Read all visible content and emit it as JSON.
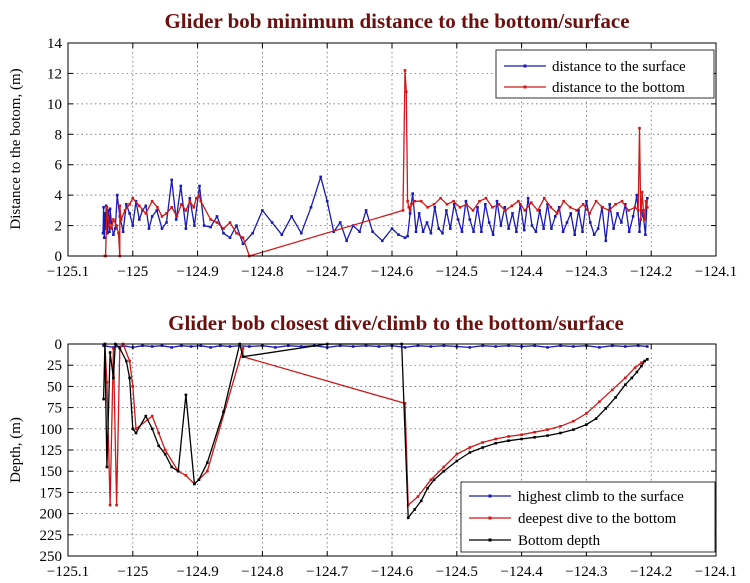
{
  "chart_data": [
    {
      "type": "line",
      "title": "Glider bob minimum distance to the bottom/surface",
      "xlabel": "",
      "ylabel": "Distance to the botom, (m)",
      "xlim": [
        -125.1,
        -124.1
      ],
      "ylim": [
        0,
        14
      ],
      "xticks": [
        "−125.1",
        "−125",
        "−124.9",
        "−124.8",
        "−124.7",
        "−124.6",
        "−124.5",
        "−124.4",
        "−124.3",
        "−124.2",
        "−124.1"
      ],
      "yticks": [
        "0",
        "2",
        "4",
        "6",
        "8",
        "10",
        "12",
        "14"
      ],
      "grid": true,
      "legend": "top-right",
      "series": [
        {
          "name": "distance to the surface",
          "color": "#1a1ab4",
          "x": [
            -125.046,
            -125.045,
            -125.044,
            -125.043,
            -125.042,
            -125.041,
            -125.04,
            -125.039,
            -125.038,
            -125.037,
            -125.036,
            -125.035,
            -125.033,
            -125.03,
            -125.027,
            -125.024,
            -125.02,
            -125.015,
            -125.01,
            -125.005,
            -125.0,
            -124.995,
            -124.99,
            -124.985,
            -124.98,
            -124.975,
            -124.97,
            -124.963,
            -124.955,
            -124.948,
            -124.94,
            -124.933,
            -124.926,
            -124.918,
            -124.912,
            -124.905,
            -124.897,
            -124.89,
            -124.88,
            -124.87,
            -124.86,
            -124.85,
            -124.84,
            -124.83,
            -124.815,
            -124.8,
            -124.785,
            -124.77,
            -124.755,
            -124.74,
            -124.725,
            -124.71,
            -124.7,
            -124.69,
            -124.68,
            -124.67,
            -124.66,
            -124.65,
            -124.64,
            -124.63,
            -124.615,
            -124.6,
            -124.59,
            -124.58,
            -124.576,
            -124.572,
            -124.568,
            -124.563,
            -124.558,
            -124.552,
            -124.546,
            -124.54,
            -124.534,
            -124.528,
            -124.522,
            -124.516,
            -124.51,
            -124.504,
            -124.498,
            -124.492,
            -124.486,
            -124.48,
            -124.474,
            -124.468,
            -124.462,
            -124.456,
            -124.45,
            -124.444,
            -124.438,
            -124.432,
            -124.426,
            -124.42,
            -124.414,
            -124.408,
            -124.402,
            -124.396,
            -124.39,
            -124.384,
            -124.378,
            -124.372,
            -124.366,
            -124.36,
            -124.354,
            -124.348,
            -124.342,
            -124.336,
            -124.33,
            -124.324,
            -124.318,
            -124.312,
            -124.306,
            -124.3,
            -124.294,
            -124.288,
            -124.282,
            -124.276,
            -124.27,
            -124.264,
            -124.258,
            -124.252,
            -124.246,
            -124.24,
            -124.234,
            -124.228,
            -124.222,
            -124.218,
            -124.215,
            -124.212,
            -124.209,
            -124.206
          ],
          "y": [
            1.5,
            3.2,
            1.2,
            2.8,
            1.8,
            3.3,
            2.0,
            1.5,
            3.0,
            2.4,
            1.6,
            3.1,
            2.2,
            1.4,
            1.8,
            4.0,
            2.6,
            1.6,
            3.4,
            2.8,
            2.0,
            3.6,
            2.4,
            3.0,
            3.3,
            1.8,
            2.6,
            3.0,
            1.8,
            2.2,
            5.0,
            2.4,
            4.6,
            1.8,
            3.8,
            2.0,
            4.6,
            2.0,
            1.9,
            2.6,
            1.5,
            1.2,
            2.0,
            0.8,
            1.5,
            3.0,
            2.2,
            1.4,
            2.6,
            1.5,
            3.2,
            5.2,
            3.6,
            1.6,
            2.2,
            1.0,
            2.0,
            1.6,
            3.0,
            1.6,
            1.0,
            1.8,
            1.4,
            1.2,
            1.3,
            2.8,
            4.1,
            1.6,
            2.8,
            1.6,
            2.2,
            1.5,
            3.2,
            1.8,
            1.5,
            3.0,
            1.8,
            3.4,
            2.4,
            1.6,
            3.6,
            2.4,
            1.6,
            3.2,
            1.6,
            3.4,
            2.2,
            1.4,
            3.6,
            2.0,
            3.2,
            1.8,
            2.8,
            1.6,
            3.4,
            1.7,
            3.8,
            2.0,
            1.6,
            3.0,
            1.8,
            3.4,
            1.8,
            2.6,
            3.2,
            1.6,
            2.2,
            2.8,
            1.4,
            3.0,
            1.6,
            3.6,
            2.2,
            1.4,
            1.8,
            3.2,
            1.0,
            3.4,
            1.8,
            2.8,
            2.2,
            3.4,
            1.6,
            2.6,
            4.0,
            1.6,
            3.0,
            2.6,
            1.4,
            3.8
          ]
        },
        {
          "name": "distance to the bottom",
          "color": "#d01818",
          "x": [
            -125.043,
            -125.042,
            -125.04,
            -125.038,
            -125.036,
            -125.033,
            -125.03,
            -125.025,
            -125.022,
            -125.02,
            -125.02,
            -125.018,
            -125.012,
            -125.005,
            -125.0,
            -124.99,
            -124.98,
            -124.97,
            -124.962,
            -124.955,
            -124.948,
            -124.94,
            -124.932,
            -124.925,
            -124.918,
            -124.912,
            -124.906,
            -124.902,
            -124.898,
            -124.895,
            -124.88,
            -124.87,
            -124.86,
            -124.85,
            -124.84,
            -124.83,
            -124.82,
            -124.583,
            -124.58,
            -124.578,
            -124.576,
            -124.574,
            -124.572,
            -124.57,
            -124.565,
            -124.555,
            -124.545,
            -124.535,
            -124.525,
            -124.515,
            -124.505,
            -124.495,
            -124.485,
            -124.475,
            -124.465,
            -124.455,
            -124.445,
            -124.435,
            -124.425,
            -124.415,
            -124.405,
            -124.395,
            -124.385,
            -124.375,
            -124.365,
            -124.355,
            -124.345,
            -124.335,
            -124.325,
            -124.315,
            -124.305,
            -124.295,
            -124.285,
            -124.275,
            -124.265,
            -124.255,
            -124.245,
            -124.235,
            -124.225,
            -124.22,
            -124.218,
            -124.216,
            -124.214,
            -124.212,
            -124.21,
            -124.208,
            -124.206
          ],
          "y": [
            0,
            0,
            3.2,
            2.5,
            2.0,
            1.8,
            2.4,
            2.0,
            1.5,
            0,
            3.3,
            2.4,
            3.0,
            3.4,
            3.8,
            3.3,
            2.8,
            3.6,
            3.2,
            2.6,
            2.8,
            3.2,
            2.6,
            3.4,
            3.0,
            3.6,
            3.2,
            3.8,
            4.0,
            3.6,
            2.4,
            2.2,
            1.8,
            2.2,
            1.5,
            1.2,
            0,
            3.0,
            12.2,
            10.8,
            3.6,
            3.2,
            3.0,
            3.4,
            3.6,
            3.6,
            3.2,
            3.4,
            3.8,
            3.4,
            3.6,
            3.2,
            3.4,
            3.0,
            3.6,
            3.8,
            3.2,
            3.4,
            3.0,
            3.3,
            3.6,
            3.0,
            3.5,
            3.0,
            3.8,
            3.2,
            2.8,
            3.6,
            3.2,
            3.0,
            3.4,
            2.8,
            3.6,
            3.2,
            3.0,
            3.4,
            3.6,
            3.0,
            3.2,
            3.0,
            8.4,
            2.4,
            4.2,
            3.0,
            2.4,
            3.6,
            3.2
          ]
        }
      ]
    },
    {
      "type": "line",
      "title": "Glider bob closest dive/climb to the bottom/surface",
      "xlabel": "",
      "ylabel": "Depth, (m)",
      "xlim": [
        -125.1,
        -124.1
      ],
      "ylim": [
        250,
        0
      ],
      "xticks": [
        "−125.1",
        "−125",
        "−124.9",
        "−124.8",
        "−124.7",
        "−124.6",
        "−124.5",
        "−124.4",
        "−124.3",
        "−124.2",
        "−124.1"
      ],
      "yticks": [
        "0",
        "25",
        "50",
        "75",
        "100",
        "125",
        "150",
        "175",
        "200",
        "225",
        "250"
      ],
      "grid": true,
      "legend": "bottom-right",
      "series": [
        {
          "name": "highest climb to the surface",
          "color": "#1a1ab4",
          "x": [
            -125.045,
            -125.03,
            -125.015,
            -125.0,
            -124.985,
            -124.97,
            -124.955,
            -124.94,
            -124.925,
            -124.91,
            -124.895,
            -124.88,
            -124.865,
            -124.85,
            -124.835,
            -124.82,
            -124.8,
            -124.78,
            -124.76,
            -124.74,
            -124.72,
            -124.7,
            -124.68,
            -124.66,
            -124.64,
            -124.62,
            -124.6,
            -124.58,
            -124.56,
            -124.54,
            -124.52,
            -124.5,
            -124.48,
            -124.46,
            -124.44,
            -124.42,
            -124.4,
            -124.38,
            -124.36,
            -124.34,
            -124.32,
            -124.3,
            -124.28,
            -124.26,
            -124.24,
            -124.22,
            -124.206
          ],
          "y": [
            2,
            4,
            2,
            4,
            2,
            3,
            2,
            4,
            2,
            3,
            2,
            4,
            2,
            3,
            2,
            3,
            2,
            4,
            2,
            3,
            2,
            4,
            2,
            3,
            2,
            3,
            2,
            4,
            2,
            3,
            2,
            3,
            4,
            2,
            3,
            2,
            3,
            2,
            4,
            2,
            3,
            2,
            4,
            2,
            3,
            2,
            3
          ]
        },
        {
          "name": "deepest dive to the bottom",
          "color": "#d01818",
          "x": [
            -125.043,
            -125.04,
            -125.035,
            -125.03,
            -125.025,
            -125.02,
            -125.015,
            -125.005,
            -125.0,
            -124.995,
            -124.97,
            -124.96,
            -124.95,
            -124.93,
            -124.918,
            -124.905,
            -124.898,
            -124.885,
            -124.83,
            -124.83,
            -124.58,
            -124.575,
            -124.56,
            -124.54,
            -124.52,
            -124.5,
            -124.48,
            -124.46,
            -124.44,
            -124.42,
            -124.4,
            -124.38,
            -124.36,
            -124.34,
            -124.32,
            -124.3,
            -124.28,
            -124.26,
            -124.24,
            -124.225,
            -124.215,
            -124.206
          ],
          "y": [
            0,
            45,
            190,
            5,
            190,
            5,
            0,
            20,
            50,
            100,
            85,
            105,
            125,
            150,
            155,
            165,
            160,
            150,
            5,
            15,
            70,
            190,
            180,
            160,
            145,
            130,
            122,
            116,
            112,
            109,
            107,
            104,
            101,
            97,
            91,
            82,
            68,
            54,
            40,
            28,
            22,
            18
          ]
        },
        {
          "name": "Bottom depth",
          "color": "#000000",
          "x": [
            -125.045,
            -125.043,
            -125.04,
            -125.035,
            -125.03,
            -125.027,
            -125.02,
            -125.01,
            -125.005,
            -125.0,
            -124.995,
            -124.98,
            -124.97,
            -124.96,
            -124.95,
            -124.94,
            -124.93,
            -124.918,
            -124.905,
            -124.898,
            -124.885,
            -124.86,
            -124.835,
            -124.83,
            -124.7,
            -124.585,
            -124.575,
            -124.565,
            -124.555,
            -124.545,
            -124.535,
            -124.52,
            -124.5,
            -124.48,
            -124.46,
            -124.44,
            -124.42,
            -124.4,
            -124.38,
            -124.36,
            -124.34,
            -124.32,
            -124.3,
            -124.285,
            -124.27,
            -124.255,
            -124.24,
            -124.23,
            -124.222,
            -124.215,
            -124.21,
            -124.206
          ],
          "y": [
            65,
            0,
            145,
            10,
            40,
            0,
            5,
            20,
            40,
            100,
            105,
            85,
            100,
            120,
            130,
            145,
            150,
            60,
            165,
            160,
            140,
            80,
            0,
            15,
            0,
            0,
            205,
            195,
            185,
            170,
            160,
            150,
            138,
            128,
            122,
            117,
            114,
            112,
            110,
            108,
            105,
            101,
            95,
            88,
            76,
            63,
            48,
            40,
            33,
            26,
            20,
            18
          ]
        }
      ]
    }
  ]
}
